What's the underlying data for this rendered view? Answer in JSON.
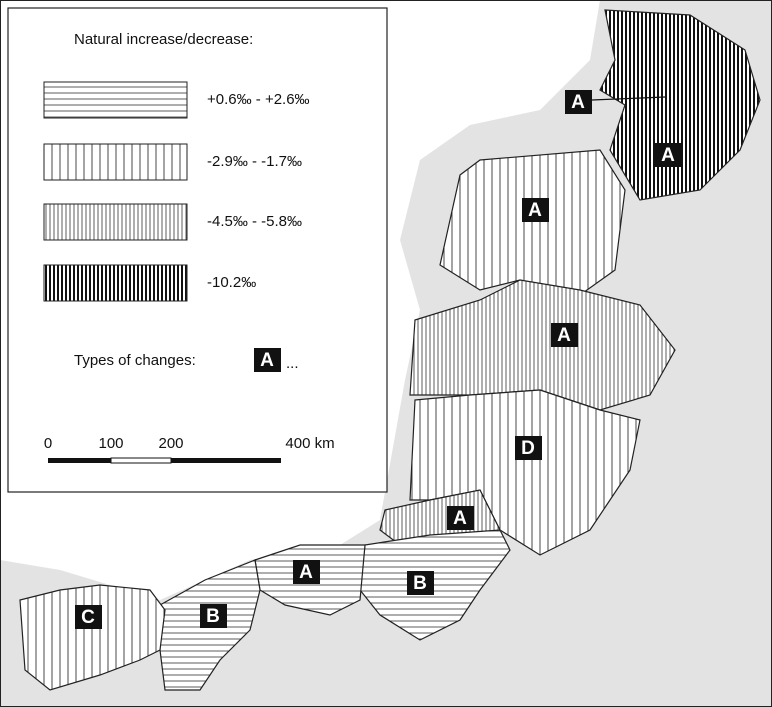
{
  "legend": {
    "title": "Natural increase/decrease:",
    "items": [
      "+0.6‰ - +2.6‰",
      "-2.9‰ - -1.7‰",
      "-4.5‰ - -5.8‰",
      "-10.2‰"
    ],
    "types_label": "Types of changes:",
    "types_badge": "A",
    "types_ellipsis": "..."
  },
  "scale": {
    "labels": [
      "0",
      "100",
      "200",
      "400 km"
    ]
  },
  "regions": [
    {
      "label": "A"
    },
    {
      "label": "A"
    },
    {
      "label": "A"
    },
    {
      "label": "A"
    },
    {
      "label": "D"
    },
    {
      "label": "A"
    },
    {
      "label": "A"
    },
    {
      "label": "B"
    },
    {
      "label": "B"
    },
    {
      "label": "C"
    }
  ]
}
